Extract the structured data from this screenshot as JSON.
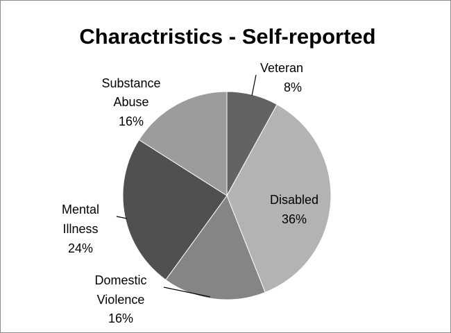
{
  "chart_data": {
    "type": "pie",
    "title": "Charactristics - Self-reported",
    "start_angle_deg": 0,
    "direction": "clockwise",
    "slices": [
      {
        "name": "Veteran",
        "percent_label": "8%",
        "value": 8,
        "color": "#636363"
      },
      {
        "name": "Disabled",
        "percent_label": "36%",
        "value": 36,
        "color": "#b3b3b3"
      },
      {
        "name": "Domestic Violence",
        "percent_label": "16%",
        "value": 16,
        "color": "#858585"
      },
      {
        "name": "Mental Illness",
        "percent_label": "24%",
        "value": 24,
        "color": "#505050"
      },
      {
        "name": "Substance Abuse",
        "percent_label": "16%",
        "value": 16,
        "color": "#9c9c9c"
      }
    ]
  }
}
